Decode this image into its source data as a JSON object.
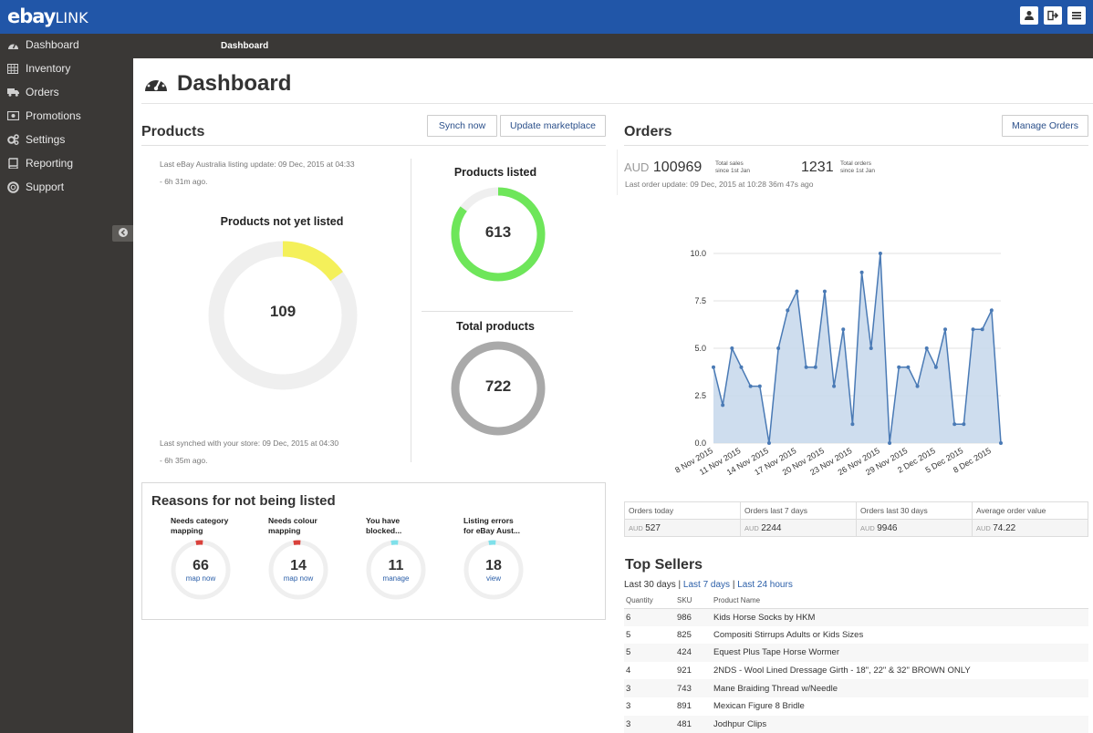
{
  "app": {
    "logo_main": "ebay",
    "logo_sub": "LINK"
  },
  "topbar": {
    "icons": [
      "user-icon",
      "logout-icon",
      "menu-icon"
    ]
  },
  "sidebar": {
    "items": [
      {
        "label": "Dashboard",
        "icon": "gauge-icon"
      },
      {
        "label": "Inventory",
        "icon": "table-icon"
      },
      {
        "label": "Orders",
        "icon": "truck-icon"
      },
      {
        "label": "Promotions",
        "icon": "money-icon"
      },
      {
        "label": "Settings",
        "icon": "gears-icon"
      },
      {
        "label": "Reporting",
        "icon": "book-icon"
      },
      {
        "label": "Support",
        "icon": "lifebuoy-icon"
      }
    ]
  },
  "breadcrumb": {
    "current": "Dashboard"
  },
  "page": {
    "title": "Dashboard"
  },
  "products": {
    "heading": "Products",
    "synch_label": "Synch now",
    "update_label": "Update marketplace",
    "listing_update": "Last eBay Australia listing update: 09 Dec, 2015 at 04:33",
    "listing_ago": "- 6h 31m ago.",
    "not_listed_title": "Products not yet listed",
    "not_listed_value": "109",
    "not_listed_fraction": 0.15,
    "listed_title": "Products listed",
    "listed_value": "613",
    "listed_fraction": 0.85,
    "total_title": "Total products",
    "total_value": "722",
    "synched": "Last synched with your store: 09 Dec, 2015 at 04:30",
    "synched_ago": "- 6h 35m ago."
  },
  "reasons": {
    "heading": "Reasons for not being listed",
    "items": [
      {
        "label1": "Needs category",
        "label2": "mapping",
        "value": "66",
        "action": "map now",
        "color": "#d9413b"
      },
      {
        "label1": "Needs colour",
        "label2": "mapping",
        "value": "14",
        "action": "map now",
        "color": "#d9413b"
      },
      {
        "label1": "You have",
        "label2": "blocked...",
        "value": "11",
        "action": "manage",
        "color": "#7fe0ea"
      },
      {
        "label1": "Listing errors",
        "label2": "for eBay Aust...",
        "value": "18",
        "action": "view",
        "color": "#7fe0ea"
      }
    ]
  },
  "orders": {
    "heading": "Orders",
    "manage_label": "Manage Orders",
    "currency": "AUD",
    "total_sales": "100969",
    "total_sales_label1": "Total sales",
    "total_sales_label2": "since 1st Jan",
    "total_orders": "1231",
    "total_orders_label1": "Total orders",
    "total_orders_label2": "since 1st Jan",
    "last_update": "Last order update: 09 Dec, 2015 at 10:28 36m 47s ago"
  },
  "chart_data": {
    "type": "area",
    "title": "",
    "xlabel": "",
    "ylabel": "",
    "ylim": [
      0,
      10
    ],
    "yticks": [
      "0.0",
      "2.5",
      "5.0",
      "7.5",
      "10.0"
    ],
    "xtick_labels": [
      "8 Nov 2015",
      "11 Nov 2015",
      "14 Nov 2015",
      "17 Nov 2015",
      "20 Nov 2015",
      "23 Nov 2015",
      "26 Nov 2015",
      "29 Nov 2015",
      "2 Dec 2015",
      "5 Dec 2015",
      "8 Dec 2015"
    ],
    "x_start": "2015-11-08",
    "values": [
      4,
      2,
      5,
      4,
      3,
      3,
      0,
      5,
      7,
      8,
      4,
      4,
      8,
      3,
      6,
      1,
      9,
      5,
      10,
      0,
      4,
      4,
      3,
      5,
      4,
      6,
      1,
      1,
      6,
      6,
      7,
      0
    ],
    "color": "#4a7ab5",
    "fill": "#c9d9ec"
  },
  "stats": {
    "headers": [
      "Orders today",
      "Orders last 7 days",
      "Orders last 30 days",
      "Average order value"
    ],
    "currency": "AUD",
    "values": [
      "527",
      "2244",
      "9946",
      "74.22"
    ]
  },
  "top_sellers": {
    "heading": "Top Sellers",
    "tab_active": "Last 30 days",
    "tab2": "Last 7 days",
    "tab3": "Last 24 hours",
    "sep": "|",
    "columns": [
      "Quantity",
      "SKU",
      "Product Name"
    ],
    "rows": [
      [
        "6",
        "986",
        "Kids Horse Socks by HKM"
      ],
      [
        "5",
        "825",
        "Compositi Stirrups Adults or Kids Sizes"
      ],
      [
        "5",
        "424",
        "Equest Plus Tape Horse Wormer"
      ],
      [
        "4",
        "921",
        "2NDS - Wool Lined Dressage Girth - 18\", 22\" & 32\" BROWN ONLY"
      ],
      [
        "3",
        "743",
        "Mane Braiding Thread w/Needle"
      ],
      [
        "3",
        "891",
        "Mexican Figure 8 Bridle"
      ],
      [
        "3",
        "481",
        "Jodhpur Clips"
      ]
    ]
  }
}
